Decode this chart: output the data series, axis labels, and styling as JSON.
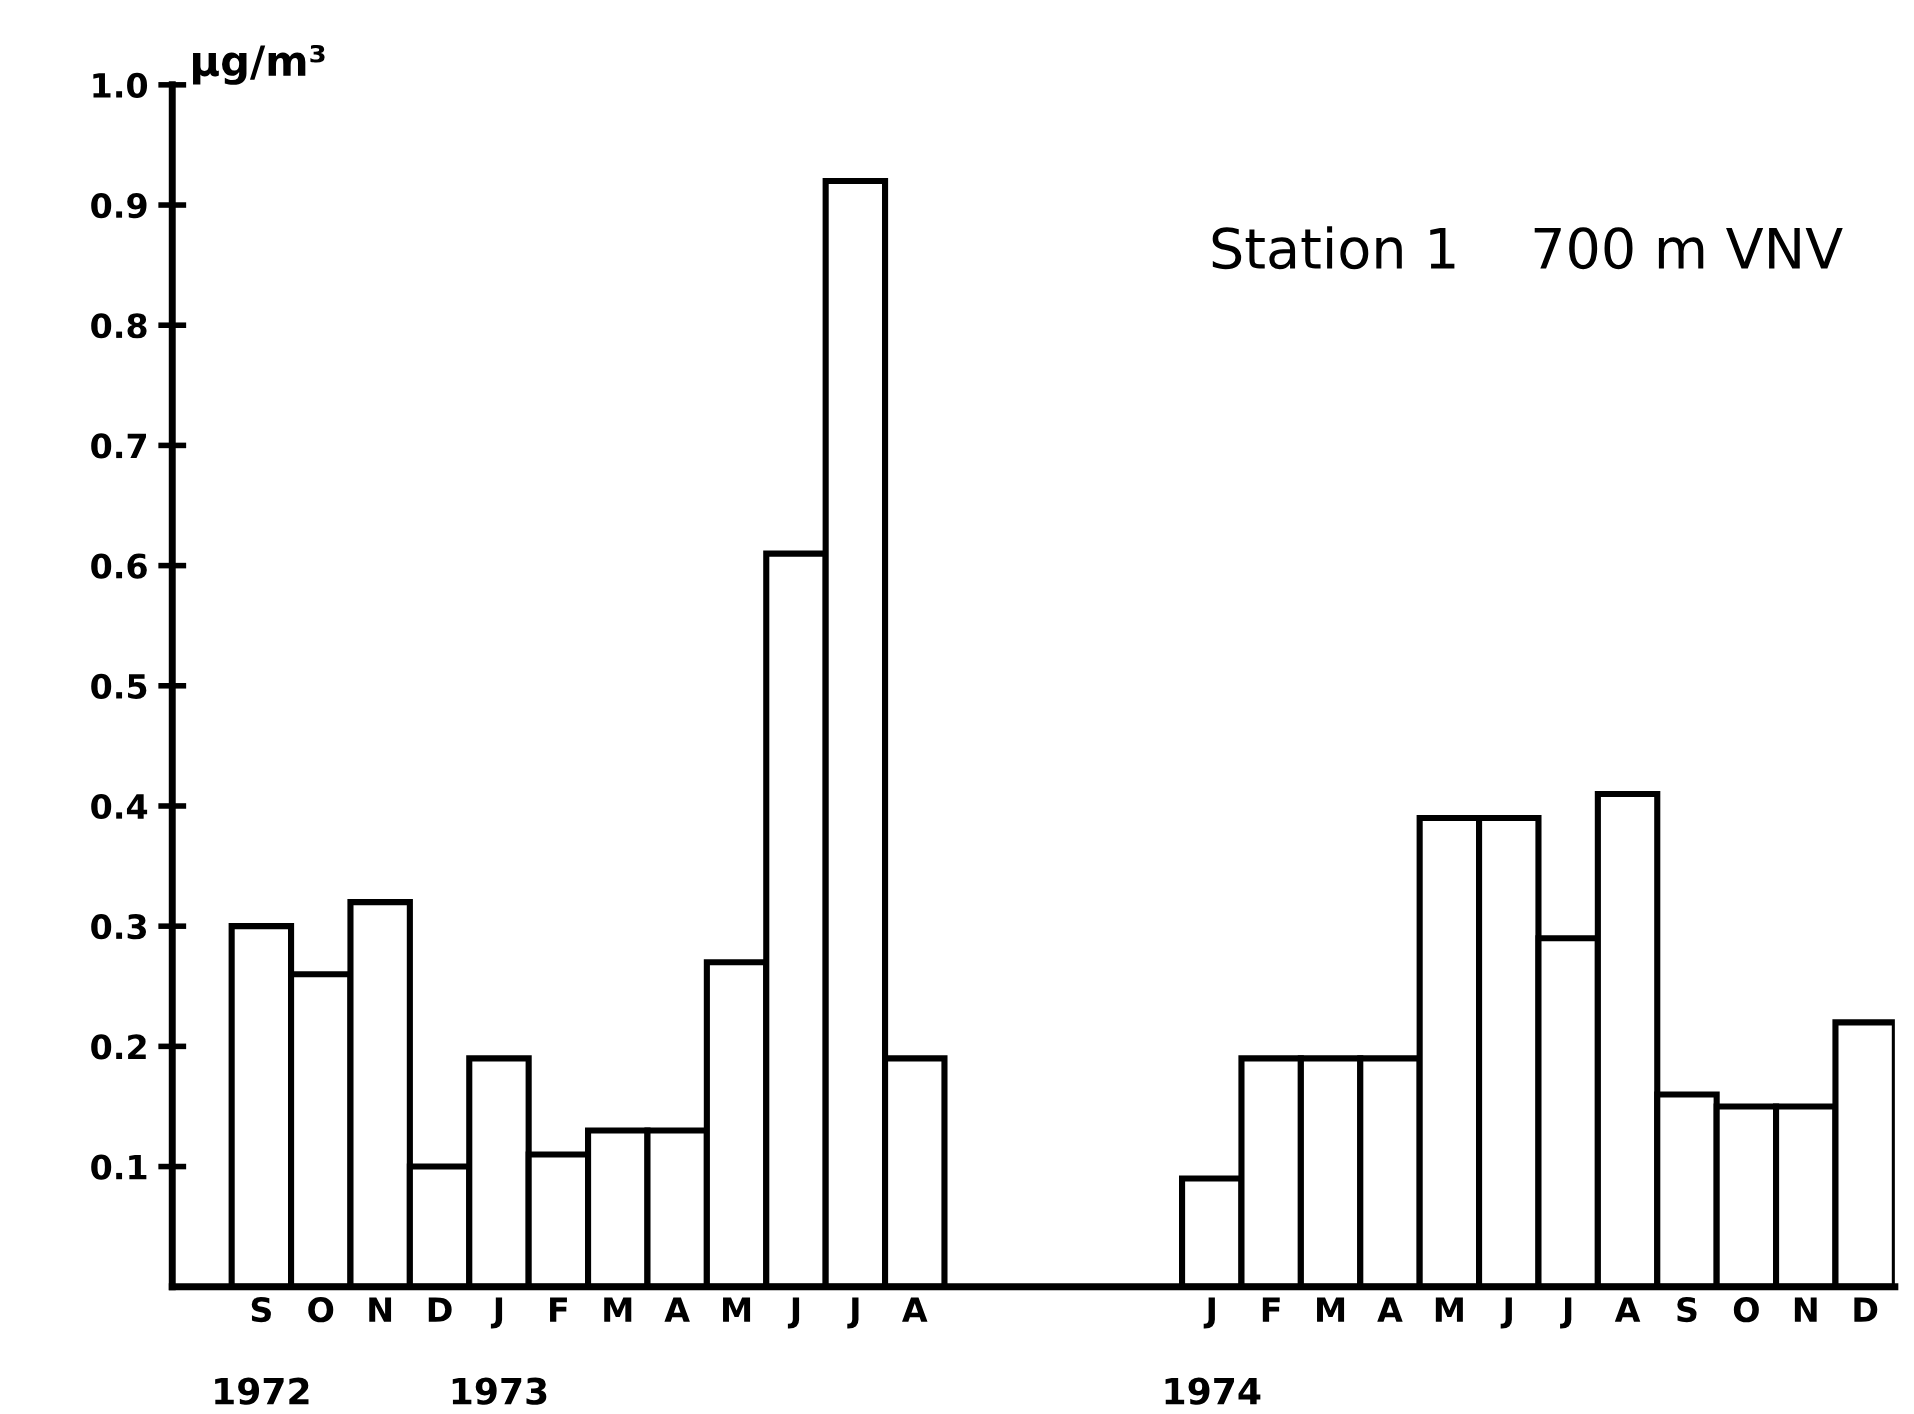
{
  "chart_data": {
    "type": "bar",
    "title": "Station 1    700 m VNV",
    "ylabel": "µg/m³",
    "categories": [
      "S",
      "O",
      "N",
      "D",
      "J",
      "F",
      "M",
      "A",
      "M",
      "J",
      "J",
      "A",
      null,
      null,
      null,
      null,
      "J",
      "F",
      "M",
      "A",
      "M",
      "J",
      "J",
      "A",
      "S",
      "O",
      "N",
      "D"
    ],
    "values": [
      0.3,
      0.26,
      0.32,
      0.1,
      0.19,
      0.11,
      0.13,
      0.13,
      0.27,
      0.61,
      0.92,
      0.19,
      null,
      null,
      null,
      null,
      0.09,
      0.19,
      0.19,
      0.19,
      0.39,
      0.39,
      0.29,
      0.41,
      0.16,
      0.15,
      0.15,
      0.22
    ],
    "color": "#ffffff",
    "ylim": [
      0,
      1.0
    ],
    "yticks": [
      0.1,
      0.2,
      0.3,
      0.4,
      0.5,
      0.6,
      0.7,
      0.8,
      0.9,
      {
        "value": 1.0,
        "label": "1.0"
      }
    ],
    "grid": false,
    "legend": false,
    "annotations": [
      "1972",
      "1973",
      "1974"
    ]
  }
}
